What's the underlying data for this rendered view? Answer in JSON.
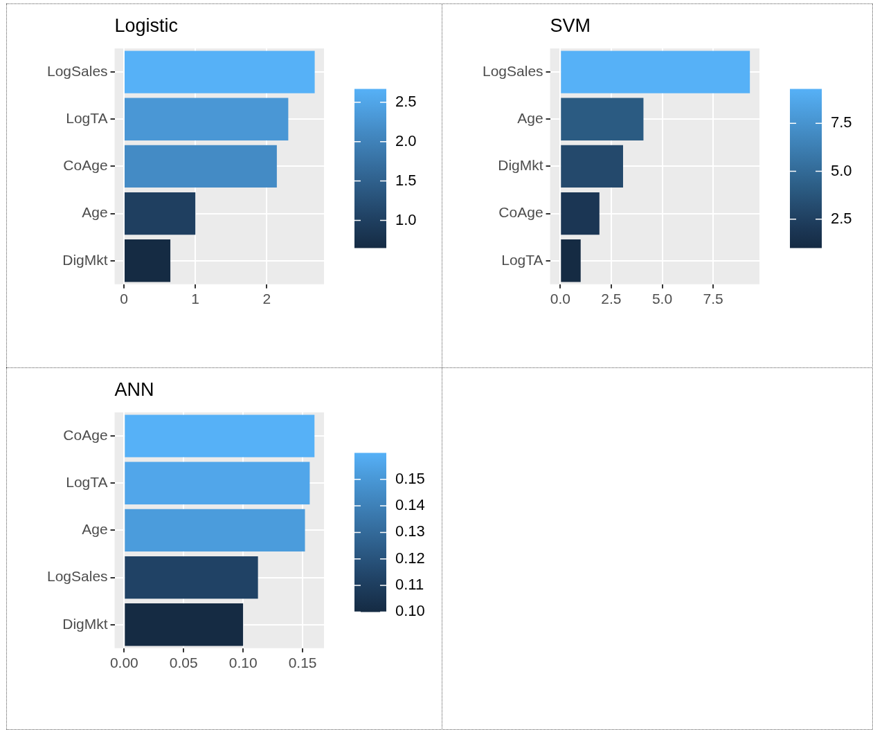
{
  "chart_data": [
    {
      "type": "bar",
      "orientation": "horizontal",
      "title": "Logistic",
      "categories": [
        "LogSales",
        "LogTA",
        "CoAge",
        "Age",
        "DigMkt"
      ],
      "values": [
        2.67,
        2.3,
        2.14,
        1.0,
        0.65
      ],
      "colors": [
        "#56b1f7",
        "#4a97d5",
        "#448bc5",
        "#1f3f60",
        "#152b43"
      ],
      "xlim": [
        -0.13,
        2.8
      ],
      "xticks": [
        0,
        1,
        2
      ],
      "clim": [
        0.65,
        2.67
      ],
      "cticks": [
        {
          "value": 1,
          "label": "1.0"
        },
        1.5,
        {
          "value": 2,
          "label": "2.0"
        },
        2.5
      ],
      "grid": true,
      "legend": false
    },
    {
      "type": "bar",
      "orientation": "horizontal",
      "title": "SVM",
      "categories": [
        "LogSales",
        "Age",
        "DigMkt",
        "CoAge",
        "LogTA"
      ],
      "values": [
        9.3,
        4.08,
        3.08,
        1.92,
        1.0
      ],
      "colors": [
        "#56b1f7",
        "#2b5b82",
        "#24496c",
        "#1b3654",
        "#152b43"
      ],
      "xlim": [
        -0.5,
        9.77
      ],
      "xticks": [
        {
          "value": 0,
          "label": "0.0"
        },
        2.5,
        {
          "value": 5,
          "label": "5.0"
        },
        7.5
      ],
      "clim": [
        1.0,
        9.3
      ],
      "cticks": [
        2.5,
        {
          "value": 5,
          "label": "5.0"
        },
        7.5
      ],
      "grid": true,
      "legend": false
    },
    {
      "type": "bar",
      "orientation": "horizontal",
      "title": "ANN",
      "categories": [
        "CoAge",
        "LogTA",
        "Age",
        "LogSales",
        "DigMkt"
      ],
      "values": [
        0.16,
        0.156,
        0.152,
        0.1125,
        0.1
      ],
      "colors": [
        "#56b1f7",
        "#51a6ea",
        "#4b9cdc",
        "#204265",
        "#152b43"
      ],
      "xlim": [
        -0.008,
        0.168
      ],
      "xticks": [
        {
          "value": 0,
          "label": "0.00"
        },
        0.05,
        {
          "value": 0.1,
          "label": "0.10"
        },
        0.15
      ],
      "clim": [
        0.1,
        0.16
      ],
      "cticks": [
        {
          "value": 0.1,
          "label": "0.10"
        },
        0.11,
        0.12,
        0.13,
        0.14,
        0.15
      ],
      "grid": true,
      "legend": false
    }
  ]
}
